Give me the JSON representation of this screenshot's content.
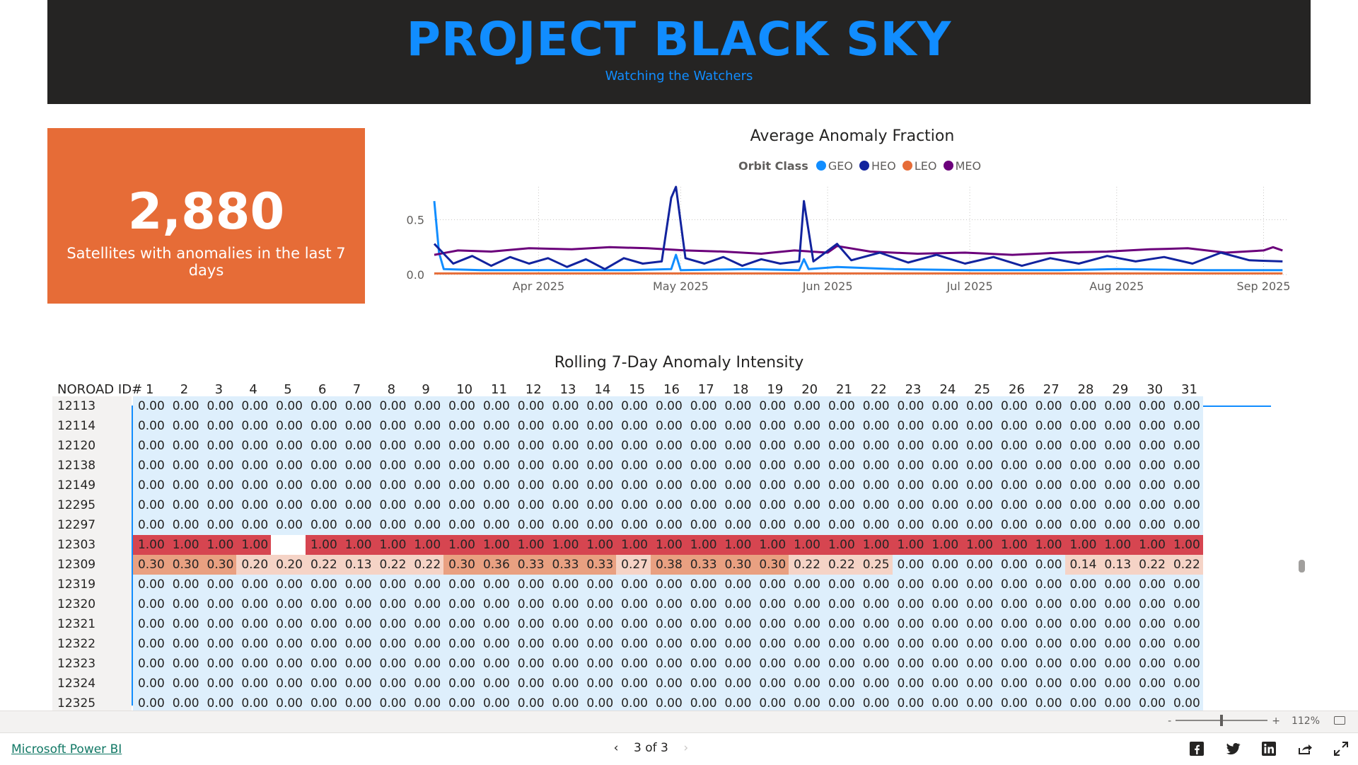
{
  "header": {
    "title": "PROJECT BLACK SKY",
    "subtitle": "Watching the Watchers"
  },
  "kpi": {
    "value": "2,880",
    "label": "Satellites with anomalies in the last 7 days",
    "color": "#E66C37"
  },
  "chart_data": {
    "type": "line",
    "title": "Average Anomaly Fraction",
    "legend_title": "Orbit Class",
    "legend_placement": "top-center",
    "x_ticks": [
      "Apr 2025",
      "May 2025",
      "Jun 2025",
      "Jul 2025",
      "Aug 2025",
      "Sep 2025"
    ],
    "x_tick_dates": [
      "2025-04-01",
      "2025-05-01",
      "2025-06-01",
      "2025-07-01",
      "2025-08-01",
      "2025-09-01"
    ],
    "x_range": [
      "2025-03-10",
      "2025-09-06"
    ],
    "y_ticks": [
      "0.0",
      "0.5"
    ],
    "ylim": [
      0,
      0.8
    ],
    "grid": true,
    "series": [
      {
        "name": "GEO",
        "color": "#118DFF",
        "points": [
          [
            "2025-03-10",
            0.67
          ],
          [
            "2025-03-11",
            0.2
          ],
          [
            "2025-03-12",
            0.05
          ],
          [
            "2025-03-20",
            0.04
          ],
          [
            "2025-04-01",
            0.04
          ],
          [
            "2025-04-20",
            0.04
          ],
          [
            "2025-04-29",
            0.05
          ],
          [
            "2025-04-30",
            0.18
          ],
          [
            "2025-05-01",
            0.04
          ],
          [
            "2025-05-15",
            0.05
          ],
          [
            "2025-05-26",
            0.04
          ],
          [
            "2025-05-27",
            0.14
          ],
          [
            "2025-05-28",
            0.05
          ],
          [
            "2025-06-03",
            0.07
          ],
          [
            "2025-06-15",
            0.05
          ],
          [
            "2025-07-01",
            0.04
          ],
          [
            "2025-07-20",
            0.04
          ],
          [
            "2025-08-01",
            0.05
          ],
          [
            "2025-08-20",
            0.04
          ],
          [
            "2025-09-05",
            0.04
          ]
        ]
      },
      {
        "name": "HEO",
        "color": "#12239E",
        "points": [
          [
            "2025-03-10",
            0.28
          ],
          [
            "2025-03-14",
            0.1
          ],
          [
            "2025-03-18",
            0.17
          ],
          [
            "2025-03-22",
            0.08
          ],
          [
            "2025-03-26",
            0.16
          ],
          [
            "2025-03-30",
            0.1
          ],
          [
            "2025-04-03",
            0.15
          ],
          [
            "2025-04-07",
            0.07
          ],
          [
            "2025-04-11",
            0.14
          ],
          [
            "2025-04-15",
            0.05
          ],
          [
            "2025-04-19",
            0.15
          ],
          [
            "2025-04-23",
            0.1
          ],
          [
            "2025-04-27",
            0.12
          ],
          [
            "2025-04-29",
            0.7
          ],
          [
            "2025-04-30",
            0.8
          ],
          [
            "2025-05-02",
            0.15
          ],
          [
            "2025-05-06",
            0.1
          ],
          [
            "2025-05-10",
            0.16
          ],
          [
            "2025-05-14",
            0.08
          ],
          [
            "2025-05-18",
            0.14
          ],
          [
            "2025-05-22",
            0.1
          ],
          [
            "2025-05-26",
            0.12
          ],
          [
            "2025-05-27",
            0.67
          ],
          [
            "2025-05-29",
            0.12
          ],
          [
            "2025-06-03",
            0.28
          ],
          [
            "2025-06-06",
            0.13
          ],
          [
            "2025-06-12",
            0.2
          ],
          [
            "2025-06-18",
            0.11
          ],
          [
            "2025-06-24",
            0.18
          ],
          [
            "2025-06-30",
            0.1
          ],
          [
            "2025-07-06",
            0.16
          ],
          [
            "2025-07-12",
            0.08
          ],
          [
            "2025-07-18",
            0.15
          ],
          [
            "2025-07-24",
            0.1
          ],
          [
            "2025-07-30",
            0.17
          ],
          [
            "2025-08-05",
            0.12
          ],
          [
            "2025-08-11",
            0.16
          ],
          [
            "2025-08-17",
            0.1
          ],
          [
            "2025-08-23",
            0.2
          ],
          [
            "2025-08-29",
            0.13
          ],
          [
            "2025-09-05",
            0.12
          ]
        ]
      },
      {
        "name": "LEO",
        "color": "#E66C37",
        "points": [
          [
            "2025-03-10",
            0.01
          ],
          [
            "2025-09-05",
            0.01
          ]
        ]
      },
      {
        "name": "MEO",
        "color": "#6B007B",
        "points": [
          [
            "2025-03-10",
            0.18
          ],
          [
            "2025-03-15",
            0.22
          ],
          [
            "2025-03-22",
            0.21
          ],
          [
            "2025-03-30",
            0.24
          ],
          [
            "2025-04-08",
            0.23
          ],
          [
            "2025-04-16",
            0.25
          ],
          [
            "2025-04-24",
            0.24
          ],
          [
            "2025-05-02",
            0.22
          ],
          [
            "2025-05-10",
            0.21
          ],
          [
            "2025-05-18",
            0.19
          ],
          [
            "2025-05-25",
            0.22
          ],
          [
            "2025-06-01",
            0.2
          ],
          [
            "2025-06-03",
            0.26
          ],
          [
            "2025-06-10",
            0.21
          ],
          [
            "2025-06-20",
            0.19
          ],
          [
            "2025-06-30",
            0.2
          ],
          [
            "2025-07-10",
            0.18
          ],
          [
            "2025-07-20",
            0.2
          ],
          [
            "2025-07-30",
            0.21
          ],
          [
            "2025-08-08",
            0.23
          ],
          [
            "2025-08-16",
            0.24
          ],
          [
            "2025-08-24",
            0.2
          ],
          [
            "2025-09-01",
            0.22
          ],
          [
            "2025-09-03",
            0.25
          ],
          [
            "2025-09-05",
            0.22
          ]
        ]
      }
    ]
  },
  "matrix": {
    "title": "Rolling 7-Day Anomaly Intensity",
    "id_header": "NOROAD ID#",
    "days": [
      "1",
      "2",
      "3",
      "4",
      "5",
      "6",
      "7",
      "8",
      "9",
      "10",
      "11",
      "12",
      "13",
      "14",
      "15",
      "16",
      "17",
      "18",
      "19",
      "20",
      "21",
      "22",
      "23",
      "24",
      "25",
      "26",
      "27",
      "28",
      "29",
      "30",
      "31"
    ],
    "rows": [
      {
        "id": "12113",
        "values": [
          "0.00",
          "0.00",
          "0.00",
          "0.00",
          "0.00",
          "0.00",
          "0.00",
          "0.00",
          "0.00",
          "0.00",
          "0.00",
          "0.00",
          "0.00",
          "0.00",
          "0.00",
          "0.00",
          "0.00",
          "0.00",
          "0.00",
          "0.00",
          "0.00",
          "0.00",
          "0.00",
          "0.00",
          "0.00",
          "0.00",
          "0.00",
          "0.00",
          "0.00",
          "0.00",
          "0.00"
        ]
      },
      {
        "id": "12114",
        "values": [
          "0.00",
          "0.00",
          "0.00",
          "0.00",
          "0.00",
          "0.00",
          "0.00",
          "0.00",
          "0.00",
          "0.00",
          "0.00",
          "0.00",
          "0.00",
          "0.00",
          "0.00",
          "0.00",
          "0.00",
          "0.00",
          "0.00",
          "0.00",
          "0.00",
          "0.00",
          "0.00",
          "0.00",
          "0.00",
          "0.00",
          "0.00",
          "0.00",
          "0.00",
          "0.00",
          "0.00"
        ]
      },
      {
        "id": "12120",
        "values": [
          "0.00",
          "0.00",
          "0.00",
          "0.00",
          "0.00",
          "0.00",
          "0.00",
          "0.00",
          "0.00",
          "0.00",
          "0.00",
          "0.00",
          "0.00",
          "0.00",
          "0.00",
          "0.00",
          "0.00",
          "0.00",
          "0.00",
          "0.00",
          "0.00",
          "0.00",
          "0.00",
          "0.00",
          "0.00",
          "0.00",
          "0.00",
          "0.00",
          "0.00",
          "0.00",
          "0.00"
        ]
      },
      {
        "id": "12138",
        "values": [
          "0.00",
          "0.00",
          "0.00",
          "0.00",
          "0.00",
          "0.00",
          "0.00",
          "0.00",
          "0.00",
          "0.00",
          "0.00",
          "0.00",
          "0.00",
          "0.00",
          "0.00",
          "0.00",
          "0.00",
          "0.00",
          "0.00",
          "0.00",
          "0.00",
          "0.00",
          "0.00",
          "0.00",
          "0.00",
          "0.00",
          "0.00",
          "0.00",
          "0.00",
          "0.00",
          "0.00"
        ]
      },
      {
        "id": "12149",
        "values": [
          "0.00",
          "0.00",
          "0.00",
          "0.00",
          "0.00",
          "0.00",
          "0.00",
          "0.00",
          "0.00",
          "0.00",
          "0.00",
          "0.00",
          "0.00",
          "0.00",
          "0.00",
          "0.00",
          "0.00",
          "0.00",
          "0.00",
          "0.00",
          "0.00",
          "0.00",
          "0.00",
          "0.00",
          "0.00",
          "0.00",
          "0.00",
          "0.00",
          "0.00",
          "0.00",
          "0.00"
        ]
      },
      {
        "id": "12295",
        "values": [
          "0.00",
          "0.00",
          "0.00",
          "0.00",
          "0.00",
          "0.00",
          "0.00",
          "0.00",
          "0.00",
          "0.00",
          "0.00",
          "0.00",
          "0.00",
          "0.00",
          "0.00",
          "0.00",
          "0.00",
          "0.00",
          "0.00",
          "0.00",
          "0.00",
          "0.00",
          "0.00",
          "0.00",
          "0.00",
          "0.00",
          "0.00",
          "0.00",
          "0.00",
          "0.00",
          "0.00"
        ]
      },
      {
        "id": "12297",
        "values": [
          "0.00",
          "0.00",
          "0.00",
          "0.00",
          "0.00",
          "0.00",
          "0.00",
          "0.00",
          "0.00",
          "0.00",
          "0.00",
          "0.00",
          "0.00",
          "0.00",
          "0.00",
          "0.00",
          "0.00",
          "0.00",
          "0.00",
          "0.00",
          "0.00",
          "0.00",
          "0.00",
          "0.00",
          "0.00",
          "0.00",
          "0.00",
          "0.00",
          "0.00",
          "0.00",
          "0.00"
        ]
      },
      {
        "id": "12303",
        "values": [
          "1.00",
          "1.00",
          "1.00",
          "1.00",
          "",
          "1.00",
          "1.00",
          "1.00",
          "1.00",
          "1.00",
          "1.00",
          "1.00",
          "1.00",
          "1.00",
          "1.00",
          "1.00",
          "1.00",
          "1.00",
          "1.00",
          "1.00",
          "1.00",
          "1.00",
          "1.00",
          "1.00",
          "1.00",
          "1.00",
          "1.00",
          "1.00",
          "1.00",
          "1.00",
          "1.00"
        ]
      },
      {
        "id": "12309",
        "values": [
          "0.30",
          "0.30",
          "0.30",
          "0.20",
          "0.20",
          "0.22",
          "0.13",
          "0.22",
          "0.22",
          "0.30",
          "0.36",
          "0.33",
          "0.33",
          "0.33",
          "0.27",
          "0.38",
          "0.33",
          "0.30",
          "0.30",
          "0.22",
          "0.22",
          "0.25",
          "0.00",
          "0.00",
          "0.00",
          "0.00",
          "0.00",
          "0.14",
          "0.13",
          "0.22",
          "0.22"
        ]
      },
      {
        "id": "12319",
        "values": [
          "0.00",
          "0.00",
          "0.00",
          "0.00",
          "0.00",
          "0.00",
          "0.00",
          "0.00",
          "0.00",
          "0.00",
          "0.00",
          "0.00",
          "0.00",
          "0.00",
          "0.00",
          "0.00",
          "0.00",
          "0.00",
          "0.00",
          "0.00",
          "0.00",
          "0.00",
          "0.00",
          "0.00",
          "0.00",
          "0.00",
          "0.00",
          "0.00",
          "0.00",
          "0.00",
          "0.00"
        ]
      },
      {
        "id": "12320",
        "values": [
          "0.00",
          "0.00",
          "0.00",
          "0.00",
          "0.00",
          "0.00",
          "0.00",
          "0.00",
          "0.00",
          "0.00",
          "0.00",
          "0.00",
          "0.00",
          "0.00",
          "0.00",
          "0.00",
          "0.00",
          "0.00",
          "0.00",
          "0.00",
          "0.00",
          "0.00",
          "0.00",
          "0.00",
          "0.00",
          "0.00",
          "0.00",
          "0.00",
          "0.00",
          "0.00",
          "0.00"
        ]
      },
      {
        "id": "12321",
        "values": [
          "0.00",
          "0.00",
          "0.00",
          "0.00",
          "0.00",
          "0.00",
          "0.00",
          "0.00",
          "0.00",
          "0.00",
          "0.00",
          "0.00",
          "0.00",
          "0.00",
          "0.00",
          "0.00",
          "0.00",
          "0.00",
          "0.00",
          "0.00",
          "0.00",
          "0.00",
          "0.00",
          "0.00",
          "0.00",
          "0.00",
          "0.00",
          "0.00",
          "0.00",
          "0.00",
          "0.00"
        ]
      },
      {
        "id": "12322",
        "values": [
          "0.00",
          "0.00",
          "0.00",
          "0.00",
          "0.00",
          "0.00",
          "0.00",
          "0.00",
          "0.00",
          "0.00",
          "0.00",
          "0.00",
          "0.00",
          "0.00",
          "0.00",
          "0.00",
          "0.00",
          "0.00",
          "0.00",
          "0.00",
          "0.00",
          "0.00",
          "0.00",
          "0.00",
          "0.00",
          "0.00",
          "0.00",
          "0.00",
          "0.00",
          "0.00",
          "0.00"
        ]
      },
      {
        "id": "12323",
        "values": [
          "0.00",
          "0.00",
          "0.00",
          "0.00",
          "0.00",
          "0.00",
          "0.00",
          "0.00",
          "0.00",
          "0.00",
          "0.00",
          "0.00",
          "0.00",
          "0.00",
          "0.00",
          "0.00",
          "0.00",
          "0.00",
          "0.00",
          "0.00",
          "0.00",
          "0.00",
          "0.00",
          "0.00",
          "0.00",
          "0.00",
          "0.00",
          "0.00",
          "0.00",
          "0.00",
          "0.00"
        ]
      },
      {
        "id": "12324",
        "values": [
          "0.00",
          "0.00",
          "0.00",
          "0.00",
          "0.00",
          "0.00",
          "0.00",
          "0.00",
          "0.00",
          "0.00",
          "0.00",
          "0.00",
          "0.00",
          "0.00",
          "0.00",
          "0.00",
          "0.00",
          "0.00",
          "0.00",
          "0.00",
          "0.00",
          "0.00",
          "0.00",
          "0.00",
          "0.00",
          "0.00",
          "0.00",
          "0.00",
          "0.00",
          "0.00",
          "0.00"
        ]
      },
      {
        "id": "12325",
        "values": [
          "0.00",
          "0.00",
          "0.00",
          "0.00",
          "0.00",
          "0.00",
          "0.00",
          "0.00",
          "0.00",
          "0.00",
          "0.00",
          "0.00",
          "0.00",
          "0.00",
          "0.00",
          "0.00",
          "0.00",
          "0.00",
          "0.00",
          "0.00",
          "0.00",
          "0.00",
          "0.00",
          "0.00",
          "0.00",
          "0.00",
          "0.00",
          "0.00",
          "0.00",
          "0.00",
          "0.00"
        ]
      }
    ],
    "colors": {
      "zero": "#DEEFFC",
      "high": "#D64550",
      "low": "#F5D3C6",
      "mid": "#E9A081"
    }
  },
  "statusbar": {
    "zoom_minus": "-",
    "zoom_plus": "+",
    "zoom_pct": "112%",
    "zoom_level": 0.5
  },
  "footer": {
    "brand": "Microsoft Power BI",
    "page": "3 of 3",
    "prev": "‹",
    "next": "›"
  }
}
